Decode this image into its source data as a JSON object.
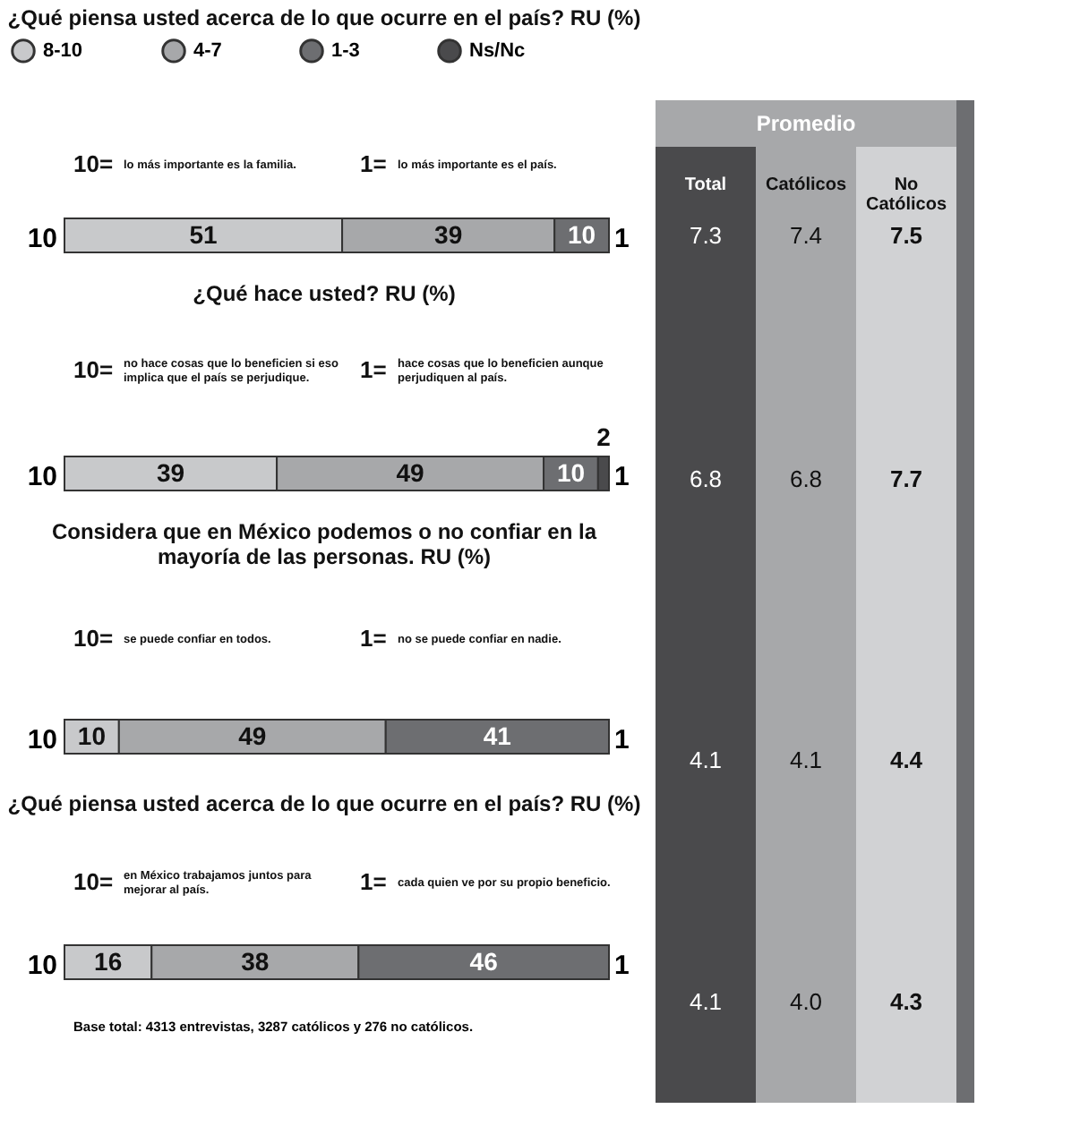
{
  "chart_data": [
    {
      "type": "bar",
      "orientation": "horizontal",
      "stacked": true,
      "title": "¿Qué piensa usted acerca de lo que ocurre en el país? RU (%)",
      "categories": [
        null
      ],
      "xlim": [
        0,
        100
      ],
      "tick_labels": false,
      "data_labels": true,
      "legend": "top",
      "series": [
        {
          "name": "8-10",
          "color": "#c8c9cb",
          "values": [
            51
          ]
        },
        {
          "name": "4-7",
          "color": "#a7a8aa",
          "values": [
            39
          ]
        },
        {
          "name": "1-3",
          "color": "#6d6e71",
          "values": [
            10
          ]
        },
        {
          "name": "Ns/Nc",
          "color": "#4a4a4c",
          "values": [
            null
          ]
        }
      ],
      "annotations": [
        "10",
        "1",
        "10= lo más importante es la familia.",
        "1= lo más importante es el país."
      ]
    },
    {
      "type": "bar",
      "orientation": "horizontal",
      "stacked": true,
      "title": "¿Qué hace usted? RU (%)",
      "categories": [
        null
      ],
      "xlim": [
        0,
        100
      ],
      "tick_labels": false,
      "data_labels": true,
      "series": [
        {
          "color": "#c8c9cb",
          "values": [
            39
          ]
        },
        {
          "color": "#a7a8aa",
          "values": [
            49
          ]
        },
        {
          "color": "#6d6e71",
          "values": [
            10
          ]
        },
        {
          "color": "#4a4a4c",
          "values": [
            2
          ]
        }
      ],
      "annotations": [
        "10",
        "1",
        "10= no hace cosas que lo beneficien si eso implica que el país se perjudique.",
        "1= hace cosas que lo beneficien aunque perjudiquen al país."
      ]
    },
    {
      "type": "bar",
      "orientation": "horizontal",
      "stacked": true,
      "title": "Considera que en México podemos o no confiar en la mayoría de las personas. RU (%)",
      "categories": [
        null
      ],
      "xlim": [
        0,
        100
      ],
      "tick_labels": false,
      "data_labels": true,
      "series": [
        {
          "color": "#c8c9cb",
          "values": [
            10
          ]
        },
        {
          "color": "#a7a8aa",
          "values": [
            49
          ]
        },
        {
          "color": "#6d6e71",
          "values": [
            41
          ]
        },
        {
          "color": "#4a4a4c",
          "values": [
            null
          ]
        }
      ],
      "annotations": [
        "10",
        "1",
        "10= se puede confiar en todos.",
        "1= no se puede confiar en nadie."
      ]
    },
    {
      "type": "bar",
      "orientation": "horizontal",
      "stacked": true,
      "title": "¿Qué piensa usted acerca de lo que ocurre en el país? RU (%)",
      "categories": [
        null
      ],
      "xlim": [
        0,
        100
      ],
      "tick_labels": false,
      "data_labels": true,
      "series": [
        {
          "color": "#c8c9cb",
          "values": [
            16
          ]
        },
        {
          "color": "#a7a8aa",
          "values": [
            38
          ]
        },
        {
          "color": "#6d6e71",
          "values": [
            46
          ]
        },
        {
          "color": "#4a4a4c",
          "values": [
            null
          ]
        }
      ],
      "annotations": [
        "10",
        "1",
        "10= en México trabajamos juntos para mejorar al país.",
        "1= cada quien ve por su propio beneficio.",
        "Base total: 4313 entrevistas, 3287 católicos y 276 no católicos."
      ]
    },
    {
      "type": "other",
      "title": "Promedio",
      "annotations": [
        "Total",
        "Católicos",
        "No Católicos",
        "7.3",
        "7.4",
        "7.5",
        "6.8",
        "6.8",
        "7.7",
        "4.1",
        "4.1",
        "4.4",
        "4.1",
        "4.0",
        "4.3"
      ]
    }
  ]
}
